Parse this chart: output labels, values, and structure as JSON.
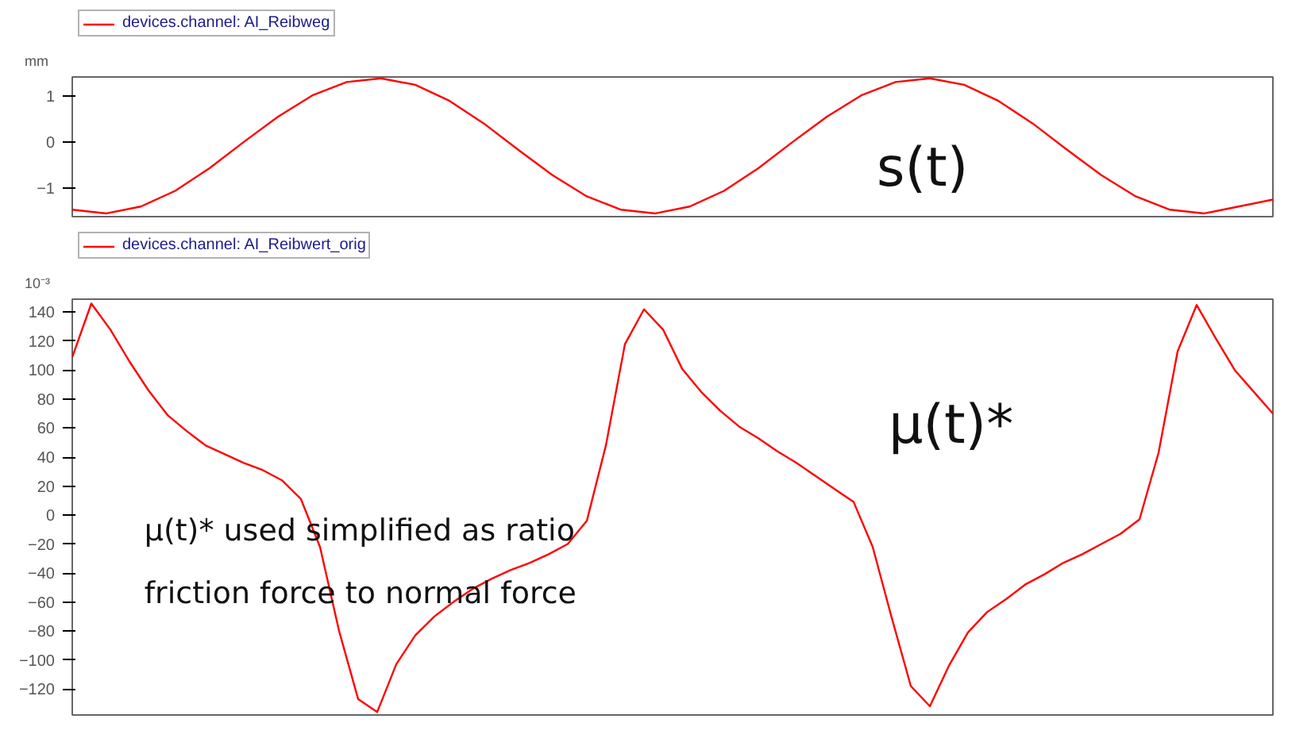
{
  "chart_data": [
    {
      "type": "line",
      "ylabel": "mm",
      "legend": "top",
      "grid": false,
      "tick_labels": "y",
      "marker": "none",
      "line_style": "solid",
      "categories": [
        null,
        null,
        null,
        null,
        null,
        null,
        null,
        null,
        null,
        null,
        null,
        null,
        null,
        null,
        null,
        null,
        null,
        null,
        null,
        null,
        null,
        null,
        null,
        null,
        null,
        null,
        null,
        null,
        null,
        null,
        null,
        null,
        null,
        null,
        null,
        null
      ],
      "ylim": [
        -1.62,
        1.41
      ],
      "yticks": [
        -1,
        0,
        1
      ],
      "series": [
        {
          "name": "devices.channel: AI_Reibweg",
          "color": "#ff0000",
          "values": [
            -1.47,
            -1.55,
            -1.4,
            -1.06,
            -0.57,
            0.0,
            0.55,
            1.01,
            1.3,
            1.38,
            1.24,
            0.89,
            0.4,
            -0.17,
            -0.72,
            -1.18,
            -1.47,
            -1.55,
            -1.4,
            -1.06,
            -0.57,
            0.0,
            0.55,
            1.01,
            1.3,
            1.38,
            1.24,
            0.89,
            0.4,
            -0.17,
            -0.72,
            -1.18,
            -1.47,
            -1.55,
            -1.4,
            -1.25
          ]
        }
      ],
      "annotations": [
        "s(t)"
      ]
    },
    {
      "type": "line",
      "ylabel": "10⁻³",
      "legend": "top",
      "grid": false,
      "tick_labels": "y",
      "marker": "none",
      "line_style": "solid",
      "categories": [
        null,
        null,
        null,
        null,
        null,
        null,
        null,
        null,
        null,
        null,
        null,
        null,
        null,
        null,
        null,
        null,
        null,
        null,
        null,
        null,
        null,
        null,
        null,
        null,
        null,
        null,
        null,
        null,
        null,
        null,
        null,
        null,
        null,
        null,
        null,
        null,
        null,
        null,
        null,
        null,
        null,
        null,
        null,
        null,
        null,
        null,
        null,
        null,
        null,
        null,
        null,
        null,
        null,
        null,
        null,
        null,
        null,
        null,
        null,
        null,
        null,
        null,
        null,
        null
      ],
      "ylim": [
        -138,
        149
      ],
      "yticks": [
        -120,
        -100,
        -80,
        -60,
        -40,
        -20,
        0,
        20,
        40,
        60,
        80,
        100,
        120,
        140
      ],
      "series": [
        {
          "name": "devices.channel: AI_Reibwert_orig",
          "color": "#ff0000",
          "values": [
            109,
            146,
            128,
            106,
            86,
            69,
            58,
            48,
            42,
            36,
            31,
            24,
            11,
            -22,
            -80,
            -127,
            -136,
            -103,
            -83,
            -70,
            -60,
            -51,
            -44,
            -38,
            -33,
            -27,
            -20,
            -4,
            48,
            118,
            142,
            128,
            101,
            85,
            72,
            61,
            53,
            44,
            36,
            27,
            18,
            9,
            -22,
            -71,
            -118,
            -132,
            -104,
            -81,
            -67,
            -58,
            -48,
            -41,
            -33,
            -27,
            -20,
            -13,
            -3,
            43,
            113,
            145,
            122,
            100,
            85,
            70
          ]
        }
      ],
      "annotations": [
        "μ(t)*",
        "μ(t)* used simplified as ratio",
        "friction force to normal force"
      ]
    }
  ]
}
